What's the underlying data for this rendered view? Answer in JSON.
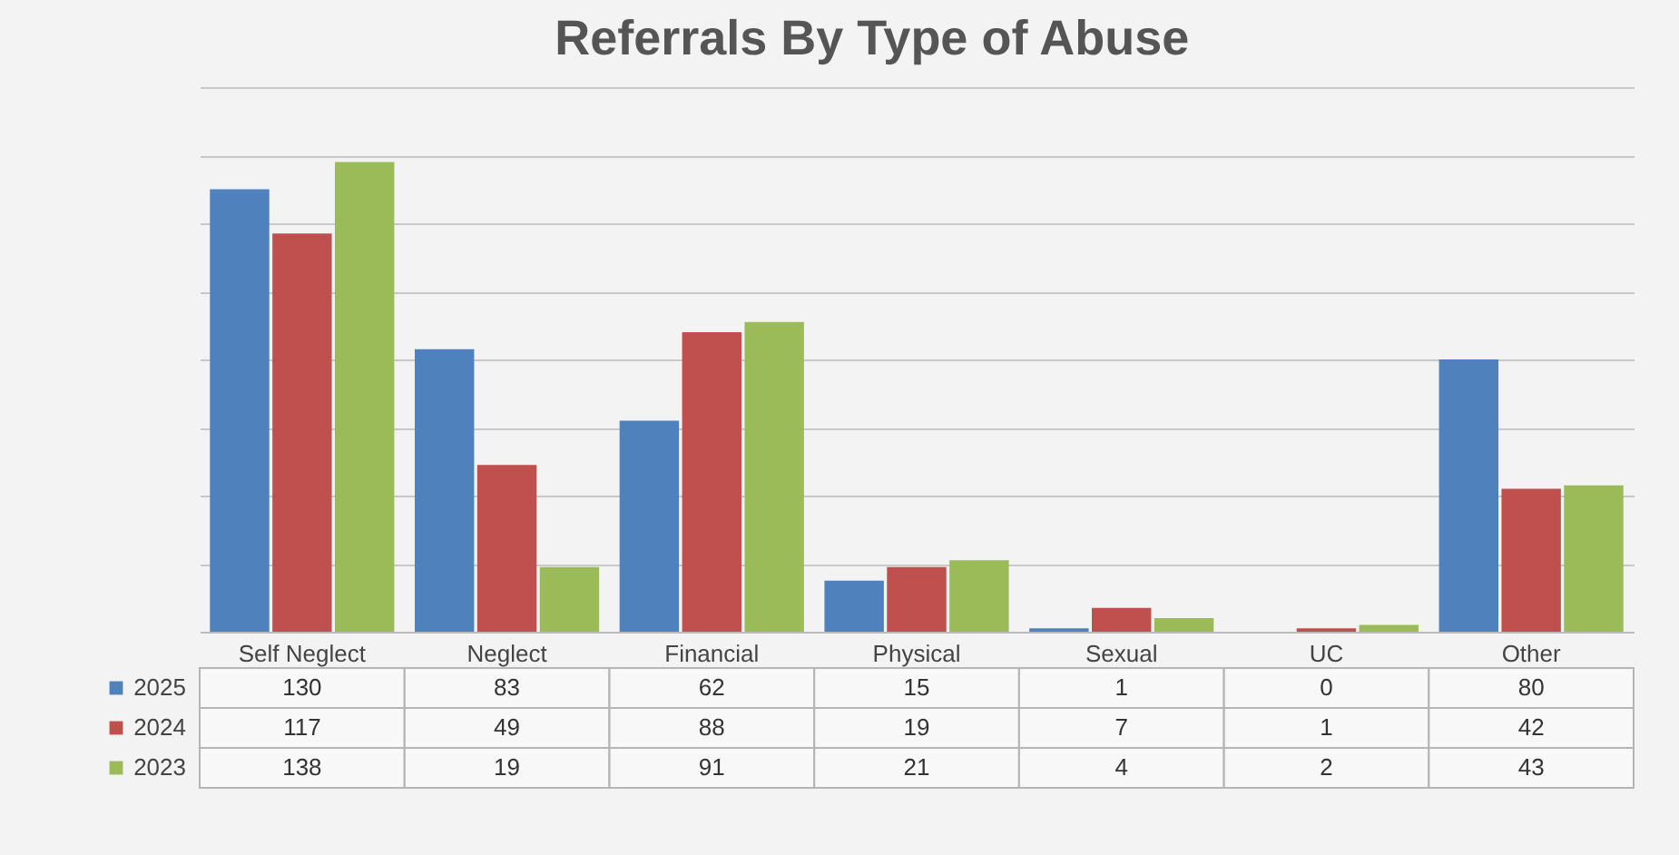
{
  "chart_data": {
    "type": "bar",
    "title": "Referrals By  Type of Abuse",
    "categories": [
      "Self Neglect",
      "Neglect",
      "Financial",
      "Physical",
      "Sexual",
      "UC",
      "Other"
    ],
    "series": [
      {
        "name": "2025",
        "color": "#4f81bd",
        "values": [
          130,
          83,
          62,
          15,
          1,
          0,
          80
        ]
      },
      {
        "name": "2024",
        "color": "#c0504d",
        "values": [
          117,
          49,
          88,
          19,
          7,
          1,
          42
        ]
      },
      {
        "name": "2023",
        "color": "#9bbb59",
        "values": [
          138,
          19,
          91,
          21,
          4,
          2,
          43
        ]
      }
    ],
    "ylim": [
      0,
      160
    ],
    "yticks": [
      {
        "value": 0,
        "label": null
      },
      {
        "value": 20,
        "label": null
      },
      {
        "value": 40,
        "label": null
      },
      {
        "value": 60,
        "label": null
      },
      {
        "value": 80,
        "label": null
      },
      {
        "value": 100,
        "label": null
      },
      {
        "value": 120,
        "label": null
      },
      {
        "value": 140,
        "label": null
      },
      {
        "value": 160,
        "label": null
      }
    ],
    "grid": "y",
    "tick_labels": "x",
    "data_labels": true,
    "legend": "bottom"
  }
}
